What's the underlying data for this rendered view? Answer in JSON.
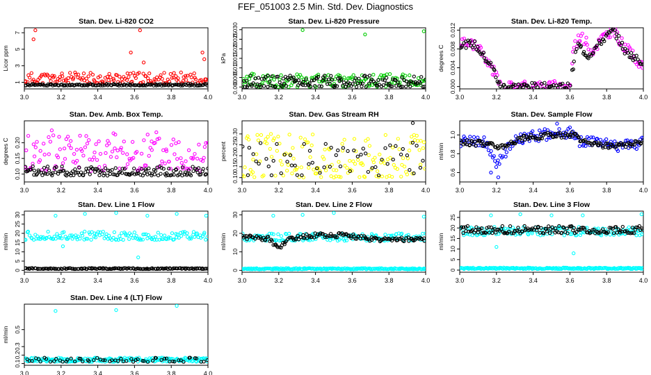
{
  "title": "FEF_051003  2.5 Min. Std. Dev. Diagnostics",
  "colors": {
    "red": "#ff0000",
    "green": "#00cc00",
    "magenta": "#ff00ff",
    "yellow": "#ffff00",
    "blue": "#0000ff",
    "cyan": "#00ffff",
    "black": "#000000"
  },
  "chart_data": [
    {
      "type": "scatter",
      "title": "Stan. Dev. Li-820 CO2",
      "ylabel": "Licor ppm",
      "xlim": [
        3.0,
        4.0
      ],
      "ylim": [
        0.2,
        7.6
      ],
      "xticks": [
        "3.0",
        "3.2",
        "3.4",
        "3.6",
        "3.8",
        "4.0"
      ],
      "yticks": [
        {
          "v": 1,
          "label": "1"
        },
        {
          "v": 3,
          "label": "3"
        },
        {
          "v": 5,
          "label": "5"
        },
        {
          "v": 7,
          "label": "7"
        }
      ],
      "series": [
        {
          "name": "primary",
          "color": "red",
          "band": [
            0.9,
            2.2
          ],
          "outliers": [
            [
              3.06,
              7.3
            ],
            [
              3.05,
              6.2
            ],
            [
              3.63,
              7.3
            ],
            [
              3.58,
              4.6
            ],
            [
              3.97,
              4.6
            ],
            [
              3.98,
              3.8
            ],
            [
              3.65,
              3.4
            ]
          ],
          "seed": 11
        },
        {
          "name": "secondary",
          "color": "black",
          "band": [
            0.6,
            0.8
          ],
          "seed": 12
        }
      ]
    },
    {
      "type": "scatter",
      "title": "Stan. Dev. Li-820 Pressure",
      "ylabel": "kPa",
      "xlim": [
        3.0,
        4.0
      ],
      "ylim": [
        -0.001,
        0.031
      ],
      "xticks": [
        "3.0",
        "3.2",
        "3.4",
        "3.6",
        "3.8",
        "4.0"
      ],
      "yticks": [
        {
          "v": 0.0,
          "label": "0.000"
        },
        {
          "v": 0.005,
          "label": "0.005"
        },
        {
          "v": 0.01,
          "label": "0.010"
        },
        {
          "v": 0.015,
          "label": "0.015"
        },
        {
          "v": 0.02,
          "label": "0.020"
        },
        {
          "v": 0.025,
          "label": "0.025"
        },
        {
          "v": 0.03,
          "label": "0.030"
        }
      ],
      "series": [
        {
          "name": "primary",
          "color": "green",
          "band": [
            0.0,
            0.007
          ],
          "outliers": [
            [
              3.33,
              0.0298
            ],
            [
              3.67,
              0.0275
            ],
            [
              3.99,
              0.0292
            ]
          ],
          "seed": 21
        },
        {
          "name": "secondary",
          "color": "black",
          "band": [
            0.0,
            0.006
          ],
          "seed": 22
        }
      ]
    },
    {
      "type": "scatter",
      "title": "Stan. Dev. Li-820 Temp.",
      "ylabel": "degrees C",
      "xlim": [
        3.0,
        4.0
      ],
      "ylim": [
        -0.0005,
        0.0125
      ],
      "xticks": [
        "3.0",
        "3.2",
        "3.4",
        "3.6",
        "3.8",
        "4.0"
      ],
      "yticks": [
        {
          "v": 0.0,
          "label": "0.000"
        },
        {
          "v": 0.004,
          "label": "0.004"
        },
        {
          "v": 0.008,
          "label": "0.008"
        },
        {
          "v": 0.012,
          "label": "0.012"
        }
      ],
      "series": [
        {
          "name": "primary",
          "color": "magenta",
          "curve": [
            [
              3.0,
              0.0095
            ],
            [
              3.08,
              0.009
            ],
            [
              3.12,
              0.007
            ],
            [
              3.18,
              0.0035
            ],
            [
              3.2,
              0.0035
            ],
            [
              3.22,
              0.0
            ],
            [
              3.6,
              0.0
            ],
            [
              3.62,
              0.0085
            ],
            [
              3.66,
              0.011
            ],
            [
              3.72,
              0.0075
            ],
            [
              3.78,
              0.0105
            ],
            [
              3.83,
              0.012
            ],
            [
              3.88,
              0.0095
            ],
            [
              3.93,
              0.007
            ],
            [
              4.0,
              0.0045
            ]
          ],
          "spread": 0.0012,
          "seed": 31
        },
        {
          "name": "secondary",
          "color": "black",
          "curve": [
            [
              3.0,
              0.009
            ],
            [
              3.08,
              0.009
            ],
            [
              3.12,
              0.007
            ],
            [
              3.18,
              0.004
            ],
            [
              3.22,
              0.0
            ],
            [
              3.6,
              0.0
            ],
            [
              3.64,
              0.009
            ],
            [
              3.7,
              0.0065
            ],
            [
              3.78,
              0.01
            ],
            [
              3.84,
              0.012
            ],
            [
              3.9,
              0.0075
            ],
            [
              4.0,
              0.005
            ]
          ],
          "spread": 0.0008,
          "seed": 32
        }
      ]
    },
    {
      "type": "scatter",
      "title": "Stan. Dev. Amb. Box Temp.",
      "ylabel": "degrees C",
      "xlim": [
        3.0,
        4.0
      ],
      "ylim": [
        0.075,
        0.27
      ],
      "xticks": [
        "3.0",
        "3.2",
        "3.4",
        "3.6",
        "3.8",
        "4.0"
      ],
      "yticks": [
        {
          "v": 0.1,
          "label": "0.10"
        },
        {
          "v": 0.15,
          "label": "0.15"
        },
        {
          "v": 0.2,
          "label": "0.20"
        }
      ],
      "series": [
        {
          "name": "primary",
          "color": "magenta",
          "band": [
            0.11,
            0.24
          ],
          "seed": 41
        },
        {
          "name": "secondary",
          "color": "black",
          "band": [
            0.095,
            0.125
          ],
          "seed": 42
        }
      ]
    },
    {
      "type": "scatter",
      "title": "Stan. Dev. Gas Stream RH",
      "ylabel": "percent",
      "xlim": [
        3.0,
        4.0
      ],
      "ylim": [
        0.08,
        0.36
      ],
      "xticks": [
        "3.0",
        "3.2",
        "3.4",
        "3.6",
        "3.8",
        "4.0"
      ],
      "yticks": [
        {
          "v": 0.1,
          "label": "0.10"
        },
        {
          "v": 0.15,
          "label": "0.15"
        },
        {
          "v": 0.2,
          "label": "0.20"
        },
        {
          "v": 0.25,
          "label": "0.25"
        },
        {
          "v": 0.3,
          "label": "0.30"
        }
      ],
      "series": [
        {
          "name": "primary",
          "color": "yellow",
          "band": [
            0.1,
            0.3
          ],
          "seed": 51
        },
        {
          "name": "secondary",
          "color": "black",
          "band": [
            0.11,
            0.26
          ],
          "sparse": true,
          "outliers": [
            [
              3.93,
              0.35
            ]
          ],
          "seed": 52
        }
      ]
    },
    {
      "type": "scatter",
      "title": "Stan. Dev. Sample Flow",
      "ylabel": "ml/min",
      "xlim": [
        3.0,
        4.0
      ],
      "ylim": [
        0.5,
        1.15
      ],
      "xticks": [
        "3.0",
        "3.2",
        "3.4",
        "3.6",
        "3.8",
        "4.0"
      ],
      "yticks": [
        {
          "v": 0.6,
          "label": "0.6"
        },
        {
          "v": 0.8,
          "label": "0.8"
        },
        {
          "v": 1.0,
          "label": "1.0"
        }
      ],
      "series": [
        {
          "name": "primary",
          "color": "blue",
          "curve": [
            [
              3.0,
              0.93
            ],
            [
              3.15,
              0.92
            ],
            [
              3.2,
              0.68
            ],
            [
              3.24,
              0.8
            ],
            [
              3.3,
              0.95
            ],
            [
              3.45,
              1.0
            ],
            [
              3.6,
              1.03
            ],
            [
              3.65,
              0.93
            ],
            [
              3.8,
              0.9
            ],
            [
              3.9,
              0.88
            ],
            [
              4.0,
              0.92
            ]
          ],
          "spread": 0.06,
          "outliers": [
            [
              3.21,
              0.55
            ],
            [
              3.17,
              0.6
            ],
            [
              3.53,
              1.12
            ],
            [
              3.6,
              1.08
            ]
          ],
          "seed": 61
        },
        {
          "name": "secondary",
          "color": "black",
          "curve": [
            [
              3.0,
              0.92
            ],
            [
              3.12,
              0.91
            ],
            [
              3.22,
              0.88
            ],
            [
              3.35,
              0.97
            ],
            [
              3.5,
              1.0
            ],
            [
              3.62,
              1.0
            ],
            [
              3.7,
              0.9
            ],
            [
              3.85,
              0.88
            ],
            [
              4.0,
              0.92
            ]
          ],
          "spread": 0.03,
          "seed": 62
        }
      ]
    },
    {
      "type": "scatter",
      "title": "Stan. Dev. Line 1 Flow",
      "ylabel": "ml/min",
      "xlim": [
        3.0,
        4.0
      ],
      "ylim": [
        -1,
        32
      ],
      "xticks": [
        "3.0",
        "3.2",
        "3.4",
        "3.6",
        "3.8",
        "4.0"
      ],
      "yticks": [
        {
          "v": 0,
          "label": "0"
        },
        {
          "v": 5,
          "label": "5"
        },
        {
          "v": 10,
          "label": "10"
        },
        {
          "v": 15,
          "label": "15"
        },
        {
          "v": 20,
          "label": "20"
        },
        {
          "v": 25,
          "label": "25"
        },
        {
          "v": 30,
          "label": "30"
        }
      ],
      "series": [
        {
          "name": "primary",
          "color": "cyan",
          "band": [
            16.5,
            21
          ],
          "outliers": [
            [
              3.17,
              29.5
            ],
            [
              3.33,
              30.5
            ],
            [
              3.5,
              31
            ],
            [
              3.67,
              29.5
            ],
            [
              3.83,
              30.5
            ],
            [
              3.99,
              29.5
            ],
            [
              3.62,
              7
            ],
            [
              3.21,
              13
            ]
          ],
          "seed": 71
        },
        {
          "name": "secondary",
          "color": "black",
          "band": [
            0.7,
            1.3
          ],
          "seed": 72
        }
      ]
    },
    {
      "type": "scatter",
      "title": "Stan. Dev. Line 2 Flow",
      "ylabel": "ml/min",
      "xlim": [
        3.0,
        4.0
      ],
      "ylim": [
        -1,
        32
      ],
      "xticks": [
        "3.0",
        "3.2",
        "3.4",
        "3.6",
        "3.8",
        "4.0"
      ],
      "yticks": [
        {
          "v": 0,
          "label": "0"
        },
        {
          "v": 10,
          "label": "10"
        },
        {
          "v": 20,
          "label": "20"
        },
        {
          "v": 30,
          "label": "30"
        }
      ],
      "series": [
        {
          "name": "cyan-upper",
          "color": "cyan",
          "band": [
            16,
            20
          ],
          "outliers": [
            [
              3.17,
              29.5
            ],
            [
              3.33,
              30
            ],
            [
              3.5,
              31
            ],
            [
              3.99,
              29
            ]
          ],
          "seed": 81
        },
        {
          "name": "cyan-lower",
          "color": "cyan",
          "band": [
            0.5,
            1.2
          ],
          "dense": true,
          "seed": 83
        },
        {
          "name": "secondary",
          "color": "black",
          "curve": [
            [
              3.0,
              18
            ],
            [
              3.15,
              17
            ],
            [
              3.2,
              11
            ],
            [
              3.25,
              17
            ],
            [
              3.4,
              19
            ],
            [
              3.55,
              19
            ],
            [
              3.62,
              18
            ],
            [
              3.7,
              17
            ],
            [
              3.85,
              16.5
            ],
            [
              4.0,
              17
            ]
          ],
          "spread": 1.2,
          "seed": 82
        }
      ]
    },
    {
      "type": "scatter",
      "title": "Stan. Dev. Line 3 Flow",
      "ylabel": "ml/min",
      "xlim": [
        3.0,
        4.0
      ],
      "ylim": [
        -1,
        28
      ],
      "xticks": [
        "3.0",
        "3.2",
        "3.4",
        "3.6",
        "3.8",
        "4.0"
      ],
      "yticks": [
        {
          "v": 0,
          "label": "0"
        },
        {
          "v": 5,
          "label": "5"
        },
        {
          "v": 10,
          "label": "10"
        },
        {
          "v": 15,
          "label": "15"
        },
        {
          "v": 20,
          "label": "20"
        },
        {
          "v": 25,
          "label": "25"
        }
      ],
      "series": [
        {
          "name": "cyan-upper",
          "color": "cyan",
          "band": [
            16.5,
            20.5
          ],
          "outliers": [
            [
              3.17,
              26
            ],
            [
              3.33,
              26.5
            ],
            [
              3.5,
              26
            ],
            [
              3.67,
              26
            ],
            [
              3.99,
              26.5
            ],
            [
              3.62,
              8
            ],
            [
              3.2,
              11
            ]
          ],
          "seed": 91
        },
        {
          "name": "cyan-lower",
          "color": "cyan",
          "band": [
            0.5,
            1.2
          ],
          "dense": true,
          "seed": 93
        },
        {
          "name": "secondary",
          "color": "black",
          "band": [
            17.5,
            21
          ],
          "seed": 92
        }
      ]
    },
    {
      "type": "scatter",
      "title": "Stan. Dev. Line 4 (LT) Flow",
      "ylabel": "ml/min",
      "xlim": [
        3.0,
        4.0
      ],
      "ylim": [
        0.08,
        0.8
      ],
      "xticks": [
        "3.0",
        "3.2",
        "3.4",
        "3.6",
        "3.8",
        "4.0"
      ],
      "yticks": [
        {
          "v": 0.1,
          "label": "0.1"
        },
        {
          "v": 0.2,
          "label": "0.2"
        },
        {
          "v": 0.3,
          "label": "0.3"
        },
        {
          "v": 0.5,
          "label": "0.5"
        }
      ],
      "series": [
        {
          "name": "primary",
          "color": "cyan",
          "band": [
            0.12,
            0.17
          ],
          "dense": true,
          "outliers": [
            [
              3.17,
              0.72
            ],
            [
              3.5,
              0.73
            ],
            [
              3.83,
              0.78
            ]
          ],
          "seed": 101
        },
        {
          "name": "secondary",
          "color": "black",
          "band": [
            0.12,
            0.17
          ],
          "sparse": true,
          "seed": 102
        }
      ]
    }
  ]
}
